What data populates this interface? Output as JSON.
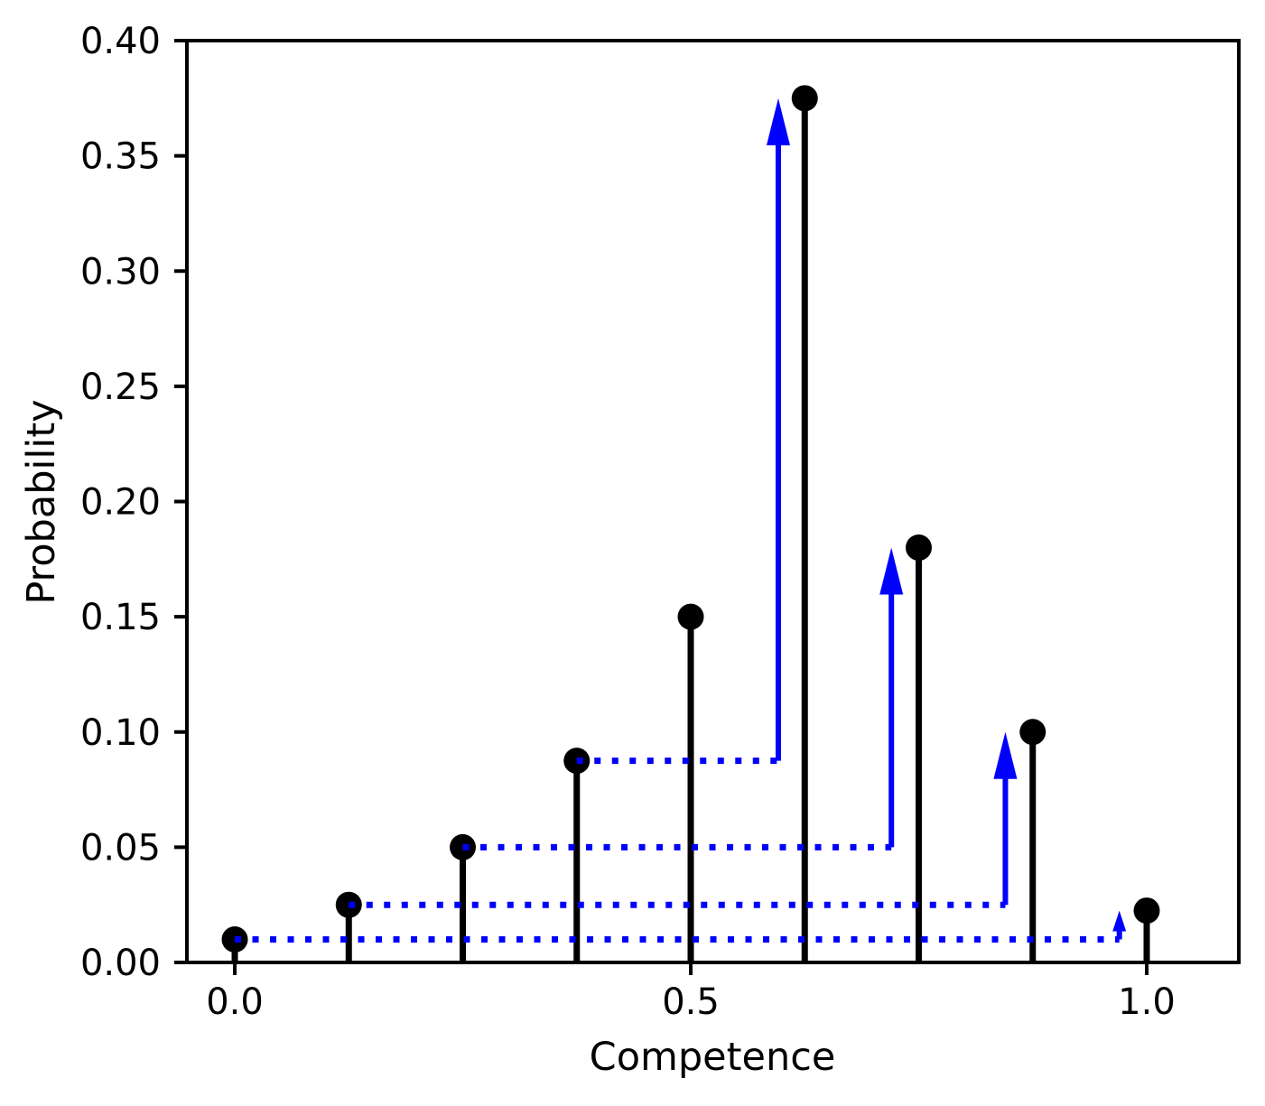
{
  "chart_data": {
    "type": "stem",
    "title": "",
    "xlabel": "Competence",
    "ylabel": "Probability",
    "x": [
      0.0,
      0.125,
      0.25,
      0.375,
      0.5,
      0.625,
      0.75,
      0.875,
      1.0
    ],
    "values": [
      0.01,
      0.025,
      0.05,
      0.0875,
      0.15,
      0.375,
      0.18,
      0.1,
      0.0225
    ],
    "xlim": [
      -0.0525,
      1.101
    ],
    "ylim": [
      0.0,
      0.4
    ],
    "xticks": [
      0.0,
      0.5,
      1.0
    ],
    "xtick_labels": [
      "0.0",
      "0.5",
      "1.0"
    ],
    "yticks": [
      0.0,
      0.05,
      0.1,
      0.15,
      0.2,
      0.25,
      0.3,
      0.35,
      0.4
    ],
    "ytick_labels": [
      "0.00",
      "0.05",
      "0.10",
      "0.15",
      "0.20",
      "0.25",
      "0.30",
      "0.35",
      "0.40"
    ],
    "grid": false,
    "legend": null,
    "stem_color": "#000000",
    "marker_color": "#000000",
    "transfer_color": "#0000ff",
    "transfers": [
      {
        "from_x": 0.375,
        "from_y": 0.0875,
        "arrow_x": 0.596,
        "to_y": 0.375
      },
      {
        "from_x": 0.25,
        "from_y": 0.05,
        "arrow_x": 0.72,
        "to_y": 0.18
      },
      {
        "from_x": 0.125,
        "from_y": 0.025,
        "arrow_x": 0.845,
        "to_y": 0.1
      },
      {
        "from_x": 0.0,
        "from_y": 0.01,
        "arrow_x": 0.97,
        "to_y": 0.0225
      }
    ]
  }
}
